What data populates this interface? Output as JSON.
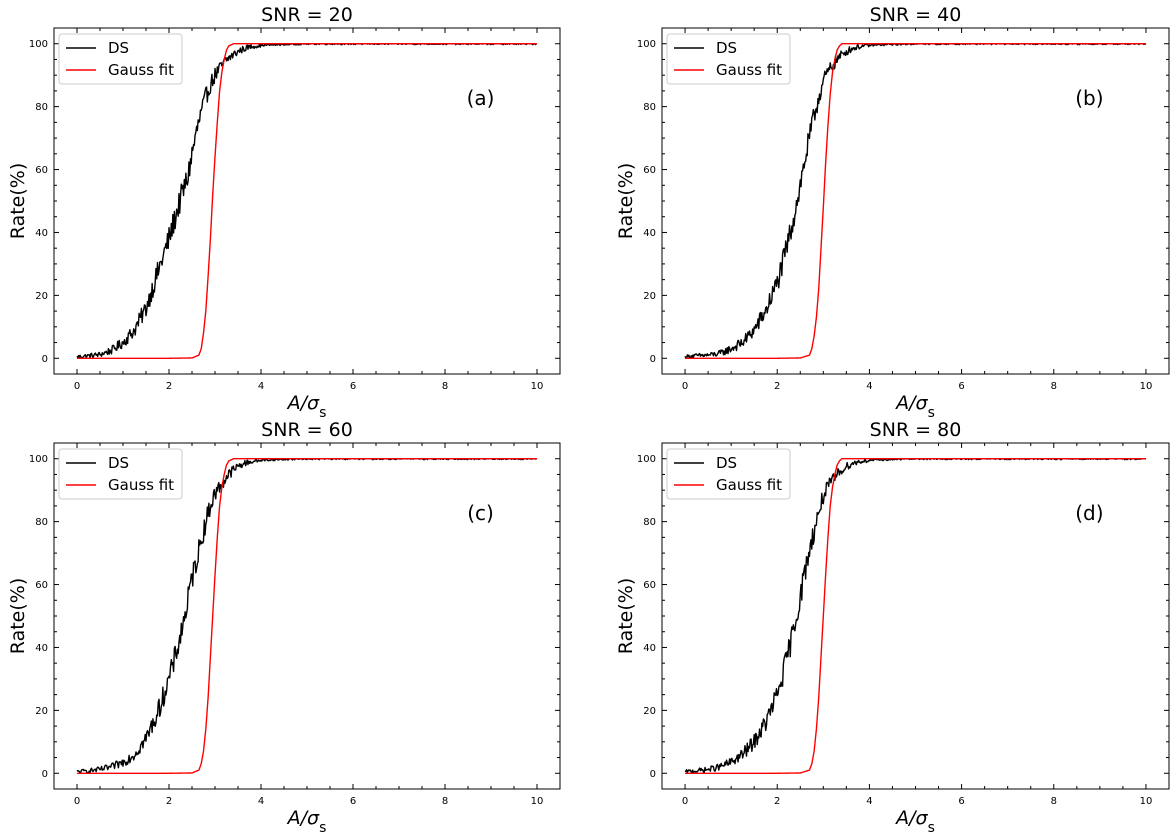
{
  "colors": {
    "ds": "#000000",
    "gauss": "#ff0000"
  },
  "chart_data": [
    {
      "type": "line",
      "title": "SNR = 20",
      "panel_tag": "(a)",
      "xlabel": "A/σs",
      "ylabel": "Rate(%)",
      "xlim": [
        -0.5,
        10.5
      ],
      "ylim": [
        -5,
        105
      ],
      "xticks": [
        0,
        2,
        4,
        6,
        8,
        10
      ],
      "yticks": [
        0,
        20,
        40,
        60,
        80,
        100
      ],
      "grid": false,
      "legend": "top-left",
      "series": [
        {
          "name": "DS",
          "color": "#000000",
          "x": [
            0,
            0.25,
            0.5,
            0.75,
            1.0,
            1.25,
            1.5,
            1.75,
            2.0,
            2.1,
            2.2,
            2.3,
            2.4,
            2.5,
            2.6,
            2.7,
            2.8,
            2.9,
            3.0,
            3.1,
            3.2,
            3.3,
            3.4,
            3.5,
            3.6,
            3.75,
            4.0,
            4.5,
            5.0,
            6.0,
            8.0,
            10.0
          ],
          "y": [
            0.5,
            0.8,
            1.2,
            2.5,
            5,
            9,
            16,
            27,
            38,
            43,
            48,
            53,
            57,
            65,
            72,
            78,
            83,
            87,
            90,
            92,
            94,
            95.5,
            96.5,
            97.5,
            98.2,
            99,
            99.5,
            99.8,
            100,
            100,
            100,
            100
          ]
        },
        {
          "name": "Gauss fit",
          "color": "#ff0000",
          "x": [
            0,
            1,
            2,
            2.5,
            2.65,
            2.7,
            2.75,
            2.8,
            2.85,
            2.9,
            2.95,
            3.0,
            3.05,
            3.1,
            3.15,
            3.2,
            3.25,
            3.3,
            3.4,
            3.6,
            4,
            6,
            8,
            10
          ],
          "y": [
            0,
            0,
            0,
            0.1,
            1,
            3,
            8,
            15,
            26,
            38,
            52,
            64,
            75,
            85,
            91,
            95,
            98,
            99.3,
            100,
            100,
            100,
            100,
            100,
            100
          ]
        }
      ]
    },
    {
      "type": "line",
      "title": "SNR = 40",
      "panel_tag": "(b)",
      "xlabel": "A/σs",
      "ylabel": "Rate(%)",
      "xlim": [
        -0.5,
        10.5
      ],
      "ylim": [
        -5,
        105
      ],
      "xticks": [
        0,
        2,
        4,
        6,
        8,
        10
      ],
      "yticks": [
        0,
        20,
        40,
        60,
        80,
        100
      ],
      "grid": false,
      "legend": "top-left",
      "series": [
        {
          "name": "DS",
          "color": "#000000",
          "x": [
            0,
            0.25,
            0.5,
            0.75,
            1.0,
            1.25,
            1.5,
            1.75,
            2.0,
            2.1,
            2.2,
            2.3,
            2.4,
            2.5,
            2.6,
            2.7,
            2.8,
            2.9,
            3.0,
            3.1,
            3.2,
            3.3,
            3.4,
            3.5,
            3.6,
            3.75,
            4.0,
            4.5,
            5.0,
            6.0,
            8.0,
            10.0
          ],
          "y": [
            0.5,
            0.8,
            1,
            1.5,
            3,
            5,
            9,
            15,
            24,
            29,
            35,
            41,
            48,
            55,
            63,
            70,
            77,
            83,
            88,
            91,
            93,
            95,
            96.5,
            97.5,
            98.3,
            99,
            99.5,
            99.8,
            100,
            100,
            100,
            100
          ]
        },
        {
          "name": "Gauss fit",
          "color": "#ff0000",
          "x": [
            0,
            1,
            2,
            2.5,
            2.7,
            2.75,
            2.8,
            2.85,
            2.9,
            2.95,
            3.0,
            3.05,
            3.1,
            3.15,
            3.2,
            3.25,
            3.3,
            3.35,
            3.4,
            3.6,
            4,
            6,
            8,
            10
          ],
          "y": [
            0,
            0,
            0,
            0.1,
            1,
            3,
            7,
            13,
            22,
            35,
            48,
            62,
            74,
            84,
            91,
            95,
            98,
            99.3,
            100,
            100,
            100,
            100,
            100,
            100
          ]
        }
      ]
    },
    {
      "type": "line",
      "title": "SNR = 60",
      "panel_tag": "(c)",
      "xlabel": "A/σs",
      "ylabel": "Rate(%)",
      "xlim": [
        -0.5,
        10.5
      ],
      "ylim": [
        -5,
        105
      ],
      "xticks": [
        0,
        2,
        4,
        6,
        8,
        10
      ],
      "yticks": [
        0,
        20,
        40,
        60,
        80,
        100
      ],
      "grid": false,
      "legend": "top-left",
      "series": [
        {
          "name": "DS",
          "color": "#000000",
          "x": [
            0,
            0.25,
            0.5,
            0.75,
            1.0,
            1.25,
            1.5,
            1.75,
            2.0,
            2.1,
            2.2,
            2.3,
            2.4,
            2.5,
            2.6,
            2.7,
            2.8,
            2.9,
            3.0,
            3.1,
            3.2,
            3.3,
            3.4,
            3.5,
            3.6,
            3.75,
            4.0,
            4.5,
            5.0,
            6.0,
            8.0,
            10.0
          ],
          "y": [
            0.5,
            0.8,
            1.2,
            2,
            3.5,
            6,
            11,
            19,
            30,
            35,
            41,
            47,
            54,
            62,
            68,
            74,
            80,
            85,
            89,
            91,
            93,
            95,
            96.5,
            97.5,
            98.3,
            99,
            99.5,
            99.8,
            100,
            100,
            100,
            100
          ]
        },
        {
          "name": "Gauss fit",
          "color": "#ff0000",
          "x": [
            0,
            1,
            2,
            2.5,
            2.65,
            2.7,
            2.75,
            2.8,
            2.85,
            2.9,
            2.95,
            3.0,
            3.05,
            3.1,
            3.15,
            3.2,
            3.25,
            3.3,
            3.4,
            3.6,
            4,
            6,
            8,
            10
          ],
          "y": [
            0,
            0,
            0,
            0.1,
            1,
            3,
            7,
            14,
            24,
            37,
            50,
            63,
            75,
            85,
            91,
            95,
            98,
            99.3,
            100,
            100,
            100,
            100,
            100,
            100
          ]
        }
      ]
    },
    {
      "type": "line",
      "title": "SNR = 80",
      "panel_tag": "(d)",
      "xlabel": "A/σs",
      "ylabel": "Rate(%)",
      "xlim": [
        -0.5,
        10.5
      ],
      "ylim": [
        -5,
        105
      ],
      "xticks": [
        0,
        2,
        4,
        6,
        8,
        10
      ],
      "yticks": [
        0,
        20,
        40,
        60,
        80,
        100
      ],
      "grid": false,
      "legend": "top-left",
      "series": [
        {
          "name": "DS",
          "color": "#000000",
          "x": [
            0,
            0.25,
            0.5,
            0.75,
            1.0,
            1.25,
            1.5,
            1.75,
            2.0,
            2.1,
            2.2,
            2.3,
            2.4,
            2.5,
            2.6,
            2.7,
            2.8,
            2.9,
            3.0,
            3.1,
            3.2,
            3.3,
            3.4,
            3.5,
            3.6,
            3.75,
            4.0,
            4.5,
            5.0,
            6.0,
            8.0,
            10.0
          ],
          "y": [
            0.5,
            0.8,
            1.2,
            2,
            3.5,
            6,
            10,
            16,
            25,
            30,
            36,
            42,
            49,
            56,
            64,
            71,
            77,
            83,
            88,
            91,
            93,
            95,
            96.5,
            97.5,
            98.3,
            99,
            99.5,
            99.8,
            100,
            100,
            100,
            100
          ]
        },
        {
          "name": "Gauss fit",
          "color": "#ff0000",
          "x": [
            0,
            1,
            2,
            2.5,
            2.7,
            2.75,
            2.8,
            2.85,
            2.9,
            2.95,
            3.0,
            3.05,
            3.1,
            3.15,
            3.2,
            3.25,
            3.3,
            3.35,
            3.4,
            3.6,
            4,
            6,
            8,
            10
          ],
          "y": [
            0,
            0,
            0,
            0.1,
            1,
            3,
            7,
            14,
            24,
            37,
            50,
            63,
            75,
            85,
            91,
            95,
            98,
            99.3,
            100,
            100,
            100,
            100,
            100,
            100
          ]
        }
      ]
    }
  ]
}
